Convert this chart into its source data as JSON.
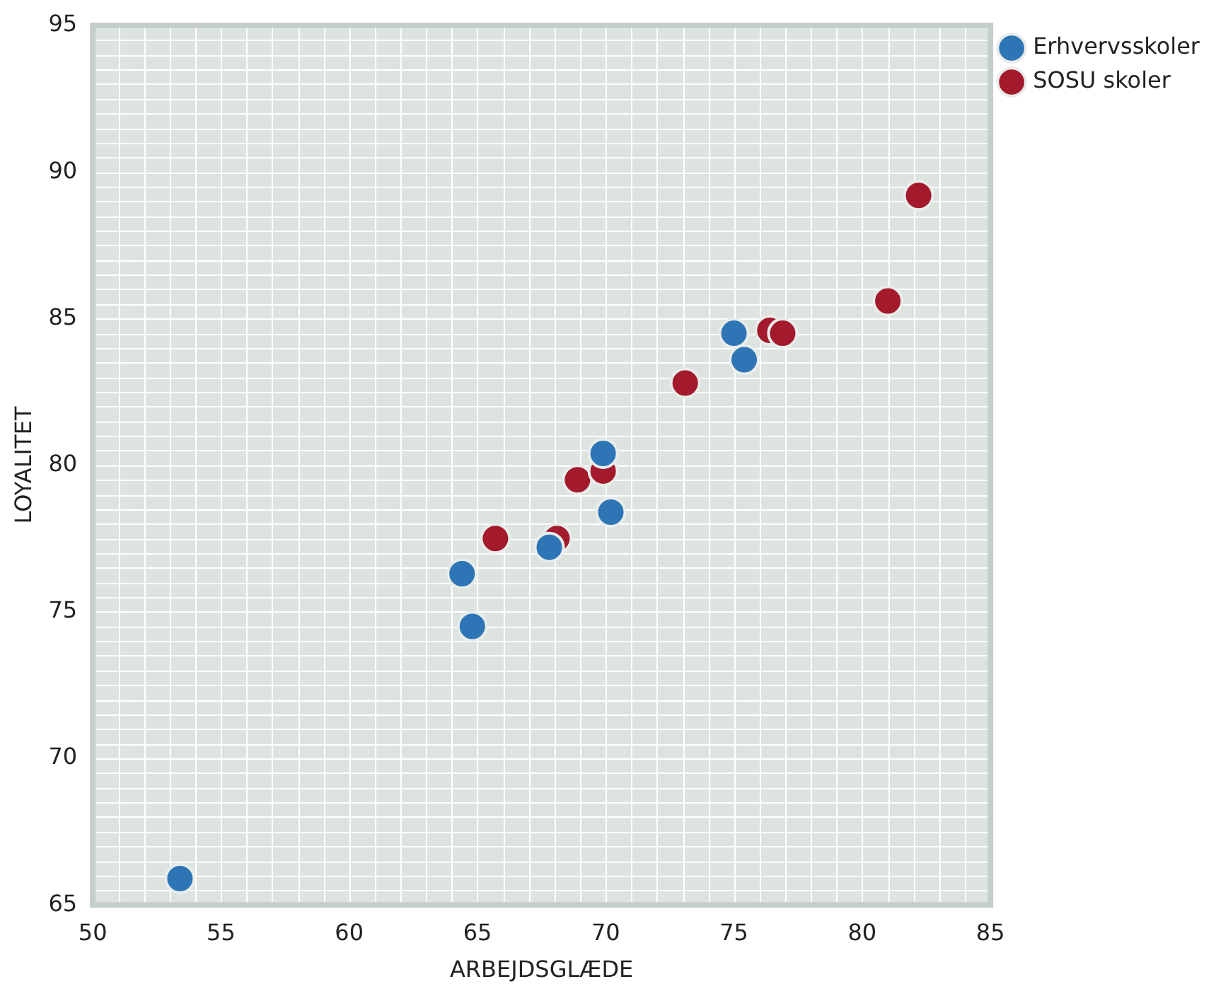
{
  "chart_data": {
    "type": "scatter",
    "xlabel": "ARBEJDSGLÆDE",
    "ylabel": "LOYALITET",
    "xlim": [
      50,
      85
    ],
    "xticks": [
      50,
      55,
      60,
      65,
      70,
      75,
      80,
      85
    ],
    "ylim": [
      65,
      95
    ],
    "yticks": [
      65,
      70,
      75,
      80,
      85,
      90,
      95
    ],
    "grid": true,
    "legend": "top right",
    "marker": "circle",
    "series": [
      {
        "name": "Erhvervsskoler",
        "color": "#2e75b6",
        "x": [
          53.4,
          64.8,
          64.4,
          67.8,
          69.9,
          70.2,
          75.0,
          75.4
        ],
        "values": [
          65.9,
          74.5,
          76.3,
          77.2,
          80.4,
          78.4,
          84.5,
          83.6
        ]
      },
      {
        "name": "SOSU skoler",
        "color": "#a31a2c",
        "x": [
          65.7,
          68.1,
          68.9,
          69.9,
          73.1,
          76.4,
          76.9,
          81.0,
          82.2
        ],
        "values": [
          77.5,
          77.5,
          79.5,
          79.8,
          82.8,
          84.6,
          84.5,
          85.6,
          89.2
        ]
      }
    ]
  }
}
